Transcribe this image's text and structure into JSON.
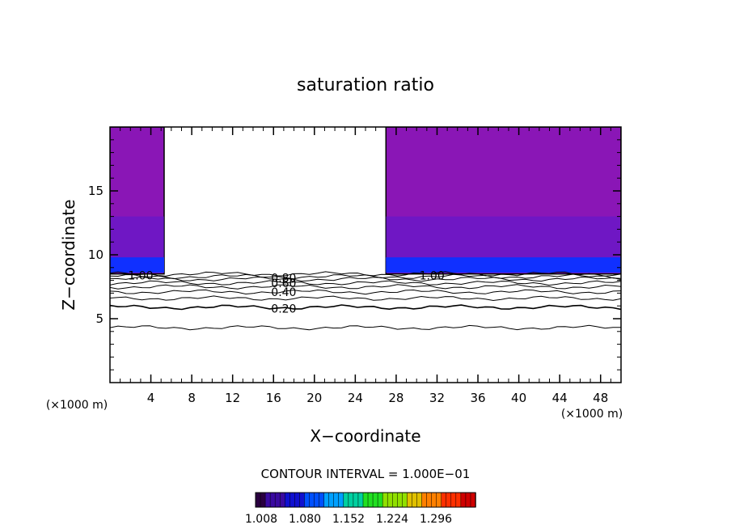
{
  "chart_data": {
    "type": "contour",
    "title": "saturation ratio",
    "xlabel": "X−coordinate",
    "ylabel": "Z−coordinate",
    "x_unit": "(×1000 m)",
    "y_unit": "(×1000 m)",
    "xlim": [
      0,
      50
    ],
    "ylim": [
      0,
      20
    ],
    "x_ticks": [
      4,
      8,
      12,
      16,
      20,
      24,
      28,
      32,
      36,
      40,
      44,
      48
    ],
    "y_ticks": [
      5,
      10,
      15
    ],
    "contour_interval_text": "CONTOUR INTERVAL = 1.000E−01",
    "contour_labels": [
      {
        "text": "1.00",
        "x": 3.0,
        "z": 8.4
      },
      {
        "text": "1.00",
        "x": 31.5,
        "z": 8.4
      },
      {
        "text": "0.80",
        "x": 17.0,
        "z": 8.2
      },
      {
        "text": "0.60",
        "x": 17.0,
        "z": 7.8
      },
      {
        "text": "0.40",
        "x": 17.0,
        "z": 7.1
      },
      {
        "text": "0.20",
        "x": 17.0,
        "z": 5.8
      }
    ],
    "contour_levels": [
      {
        "level": 0.1,
        "z": 4.3
      },
      {
        "level": 0.2,
        "z": 5.9
      },
      {
        "level": 0.3,
        "z": 6.6
      },
      {
        "level": 0.4,
        "z": 7.1
      },
      {
        "level": 0.5,
        "z": 7.5
      },
      {
        "level": 0.6,
        "z": 7.8
      },
      {
        "level": 0.7,
        "z": 8.1
      },
      {
        "level": 0.8,
        "z": 8.3
      },
      {
        "level": 0.9,
        "z": 8.5
      }
    ],
    "supersaturated_regions": [
      {
        "x": [
          0,
          5.3
        ],
        "z": [
          8.5,
          20
        ]
      },
      {
        "x": [
          27.0,
          50
        ],
        "z": [
          8.5,
          20
        ]
      }
    ],
    "colorbar": {
      "tick_labels": [
        "1.008",
        "1.080",
        "1.152",
        "1.224",
        "1.296"
      ],
      "range": [
        1.008,
        1.33
      ],
      "colors": [
        "#2a0040",
        "#3a0aa0",
        "#1010d0",
        "#0050ff",
        "#00a0ff",
        "#00d0a0",
        "#20e020",
        "#90e000",
        "#e0c000",
        "#ff8000",
        "#ff3000",
        "#d00000"
      ]
    },
    "region_colors": {
      "background_fill": "#8a16b6",
      "band_fill": "#5a1ad0",
      "base_fill": "#1030ff"
    }
  }
}
